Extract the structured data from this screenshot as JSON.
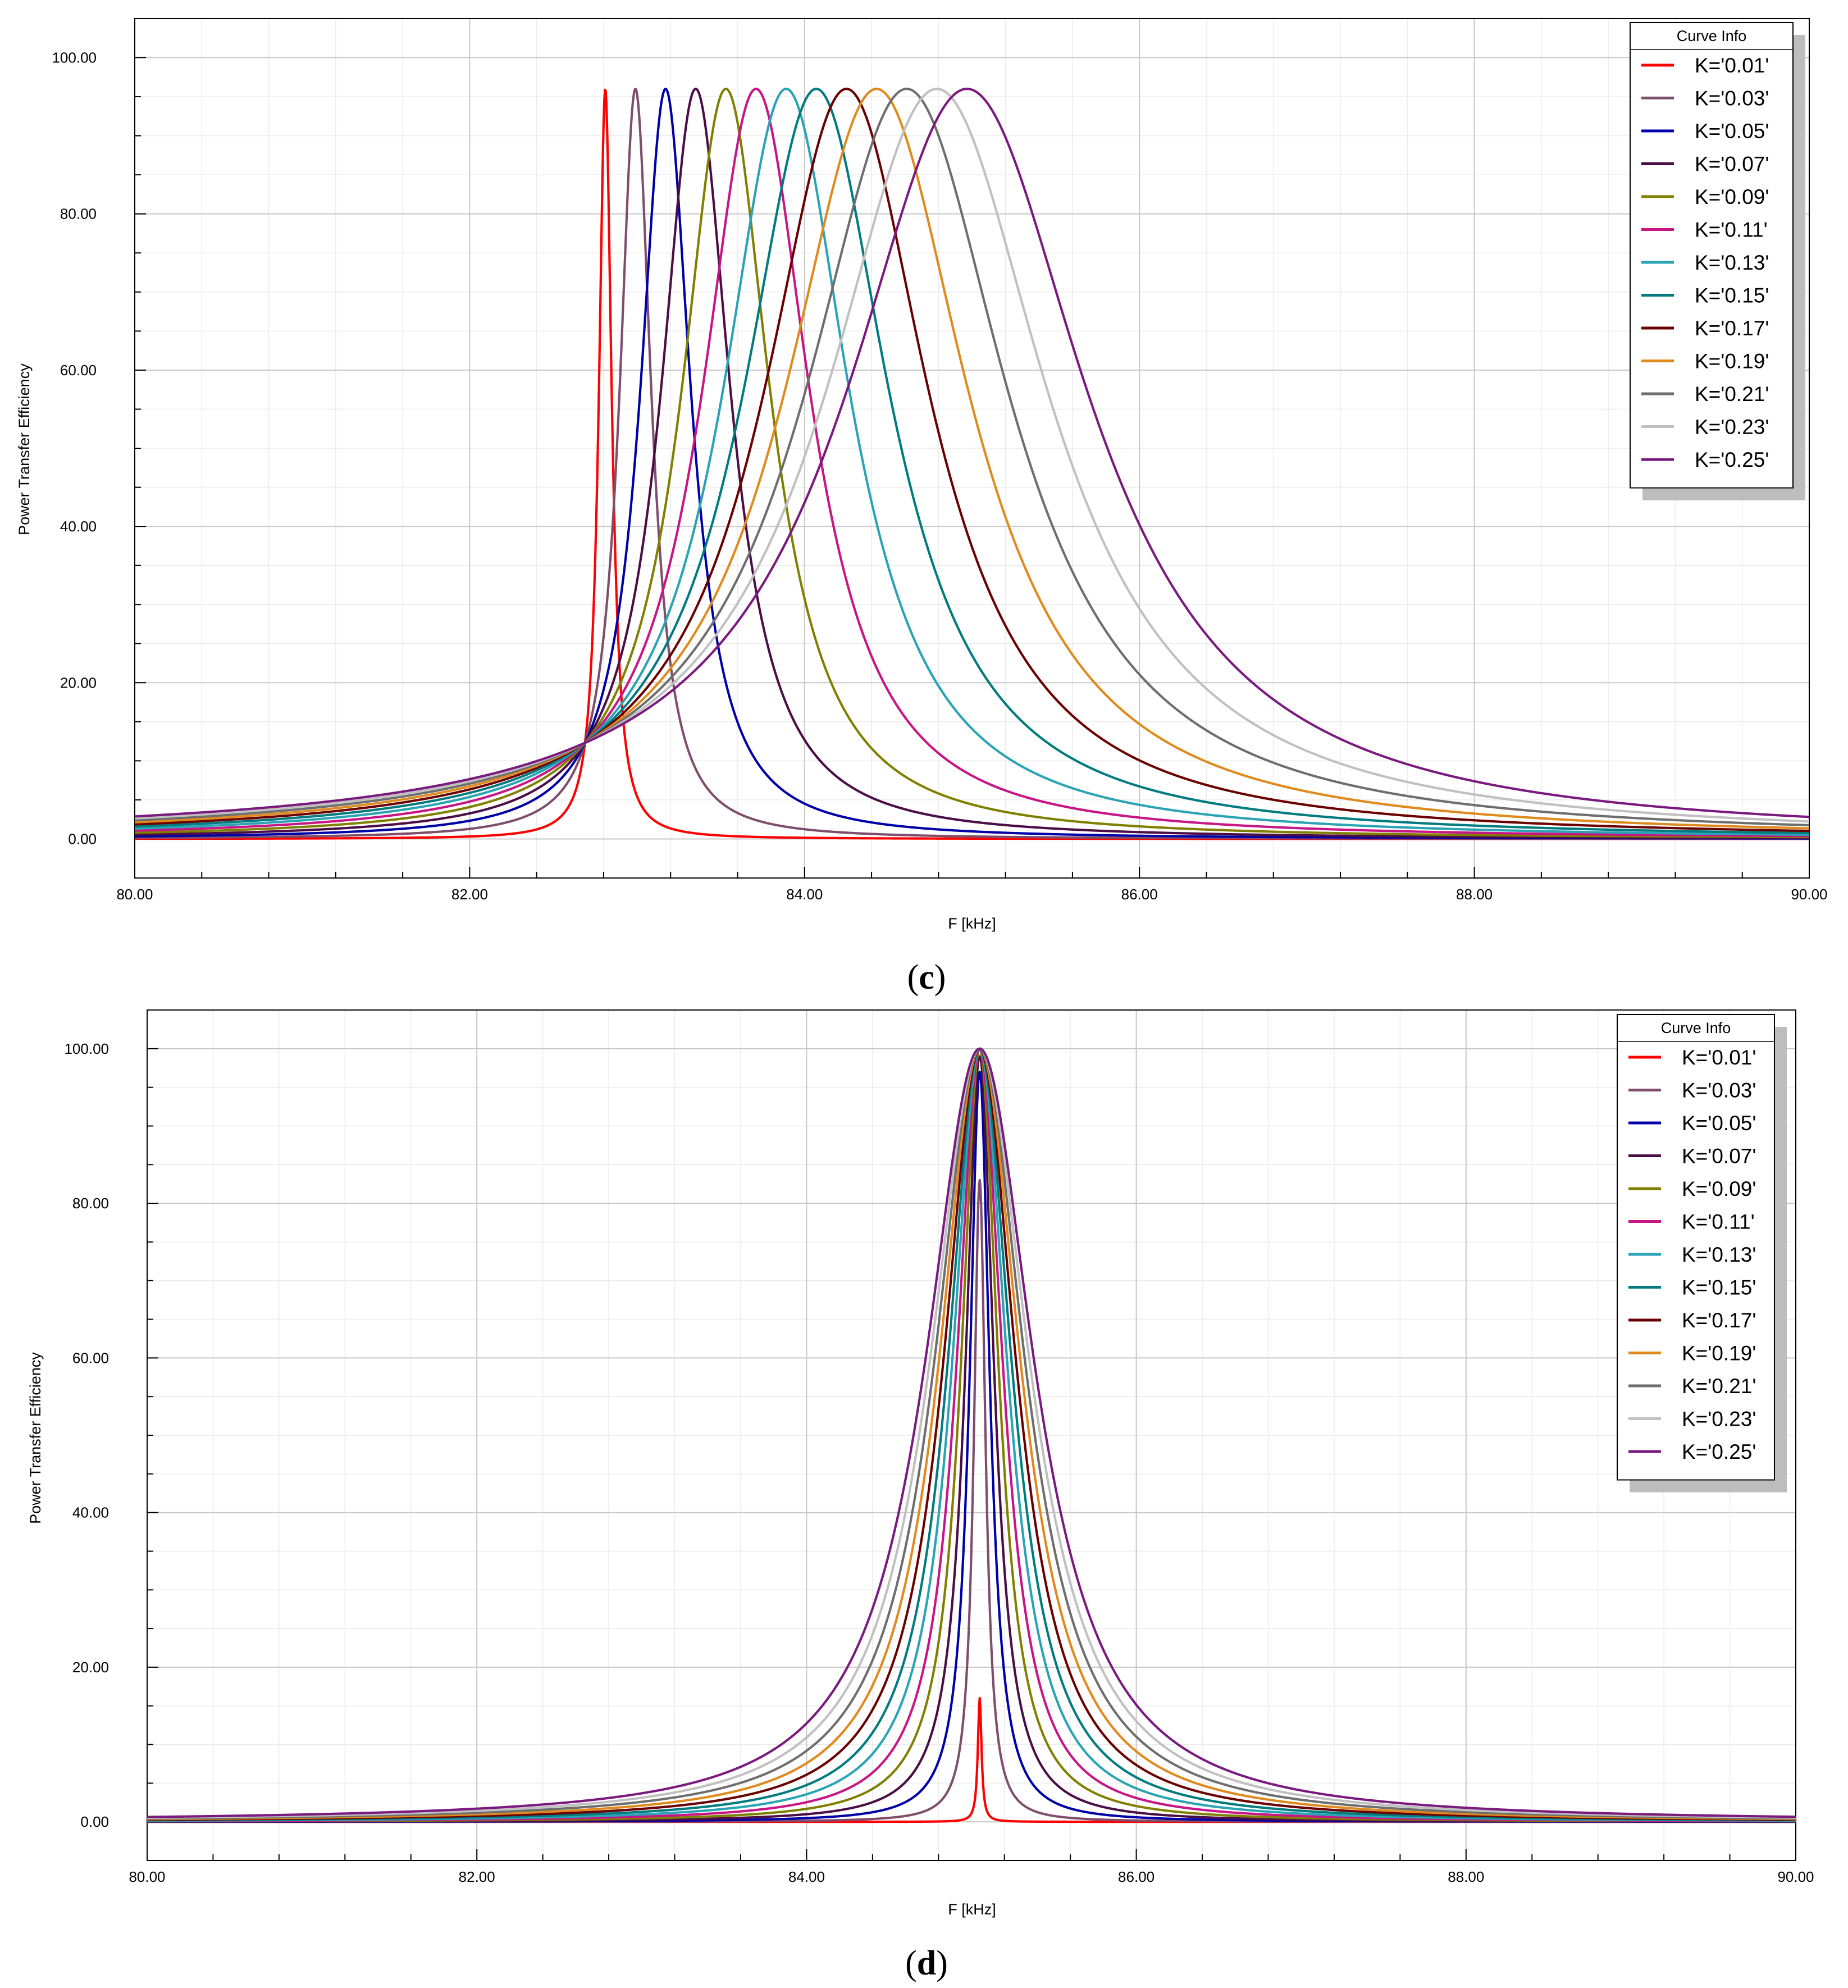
{
  "chart_data": [
    {
      "type": "line",
      "panel_label": "c",
      "caption_open": "(",
      "caption_close": ")",
      "xlabel": "F [kHz]",
      "ylabel": "Power Transfer Efficiency",
      "xlim": [
        80,
        90
      ],
      "ylim": [
        -5,
        105
      ],
      "xticks": [
        "80.00",
        "82.00",
        "84.00",
        "86.00",
        "88.00",
        "90.00"
      ],
      "yticks": [
        "0.00",
        "20.00",
        "40.00",
        "60.00",
        "80.00",
        "100.00"
      ],
      "grid": true,
      "legend_title": "Curve Info",
      "legend_position": "top-right",
      "model": {
        "peak_freq_at_k0": 82.72,
        "peak_shift_per_k": 9.0,
        "width_at_k0": 0.012,
        "width_per_k": 3.45,
        "max_peak": 96,
        "width_exponent": 1.0
      },
      "series": [
        {
          "name": "K='0.01'",
          "k": 0.01,
          "color": "#ff0000"
        },
        {
          "name": "K='0.03'",
          "k": 0.03,
          "color": "#7f4e6d"
        },
        {
          "name": "K='0.05'",
          "k": 0.05,
          "color": "#0000a8"
        },
        {
          "name": "K='0.07'",
          "k": 0.07,
          "color": "#4b0d45"
        },
        {
          "name": "K='0.09'",
          "k": 0.09,
          "color": "#808000"
        },
        {
          "name": "K='0.11'",
          "k": 0.11,
          "color": "#c71585"
        },
        {
          "name": "K='0.13'",
          "k": 0.13,
          "color": "#2aa3b5"
        },
        {
          "name": "K='0.15'",
          "k": 0.15,
          "color": "#007b7f"
        },
        {
          "name": "K='0.17'",
          "k": 0.17,
          "color": "#6b0000"
        },
        {
          "name": "K='0.19'",
          "k": 0.19,
          "color": "#e08a1e"
        },
        {
          "name": "K='0.21'",
          "k": 0.21,
          "color": "#6e6e6e"
        },
        {
          "name": "K='0.23'",
          "k": 0.23,
          "color": "#c0c0c0"
        },
        {
          "name": "K='0.25'",
          "k": 0.25,
          "color": "#7a1a7f"
        }
      ]
    },
    {
      "type": "line",
      "panel_label": "d",
      "caption_open": "(",
      "caption_close": ")",
      "xlabel": "F [kHz]",
      "ylabel": "Power Transfer Efficiency",
      "xlim": [
        80,
        90
      ],
      "ylim": [
        -5,
        105
      ],
      "xticks": [
        "80.00",
        "82.00",
        "84.00",
        "86.00",
        "88.00",
        "90.00"
      ],
      "yticks": [
        "0.00",
        "20.00",
        "40.00",
        "60.00",
        "80.00",
        "100.00"
      ],
      "grid": true,
      "legend_title": "Curve Info",
      "legend_position": "top-right",
      "model": {
        "peak_freq_at_k0": 85.05,
        "peak_shift_per_k": 0.0,
        "width_at_k0": 0.0,
        "width_per_k": 1.72,
        "max_peak": 100,
        "width_exponent": 1.05
      },
      "series": [
        {
          "name": "K='0.01'",
          "k": 0.01,
          "color": "#ff0000",
          "peak": 16
        },
        {
          "name": "K='0.03'",
          "k": 0.03,
          "color": "#7f4e6d",
          "peak": 83
        },
        {
          "name": "K='0.05'",
          "k": 0.05,
          "color": "#0000a8",
          "peak": 97
        },
        {
          "name": "K='0.07'",
          "k": 0.07,
          "color": "#4b0d45",
          "peak": 99
        },
        {
          "name": "K='0.09'",
          "k": 0.09,
          "color": "#808000",
          "peak": 100
        },
        {
          "name": "K='0.11'",
          "k": 0.11,
          "color": "#c71585",
          "peak": 100
        },
        {
          "name": "K='0.13'",
          "k": 0.13,
          "color": "#2aa3b5",
          "peak": 100
        },
        {
          "name": "K='0.15'",
          "k": 0.15,
          "color": "#007b7f",
          "peak": 100
        },
        {
          "name": "K='0.17'",
          "k": 0.17,
          "color": "#6b0000",
          "peak": 100
        },
        {
          "name": "K='0.19'",
          "k": 0.19,
          "color": "#e08a1e",
          "peak": 100
        },
        {
          "name": "K='0.21'",
          "k": 0.21,
          "color": "#6e6e6e",
          "peak": 100
        },
        {
          "name": "K='0.23'",
          "k": 0.23,
          "color": "#c0c0c0",
          "peak": 100
        },
        {
          "name": "K='0.25'",
          "k": 0.25,
          "color": "#7a1a7f",
          "peak": 100
        }
      ]
    }
  ]
}
